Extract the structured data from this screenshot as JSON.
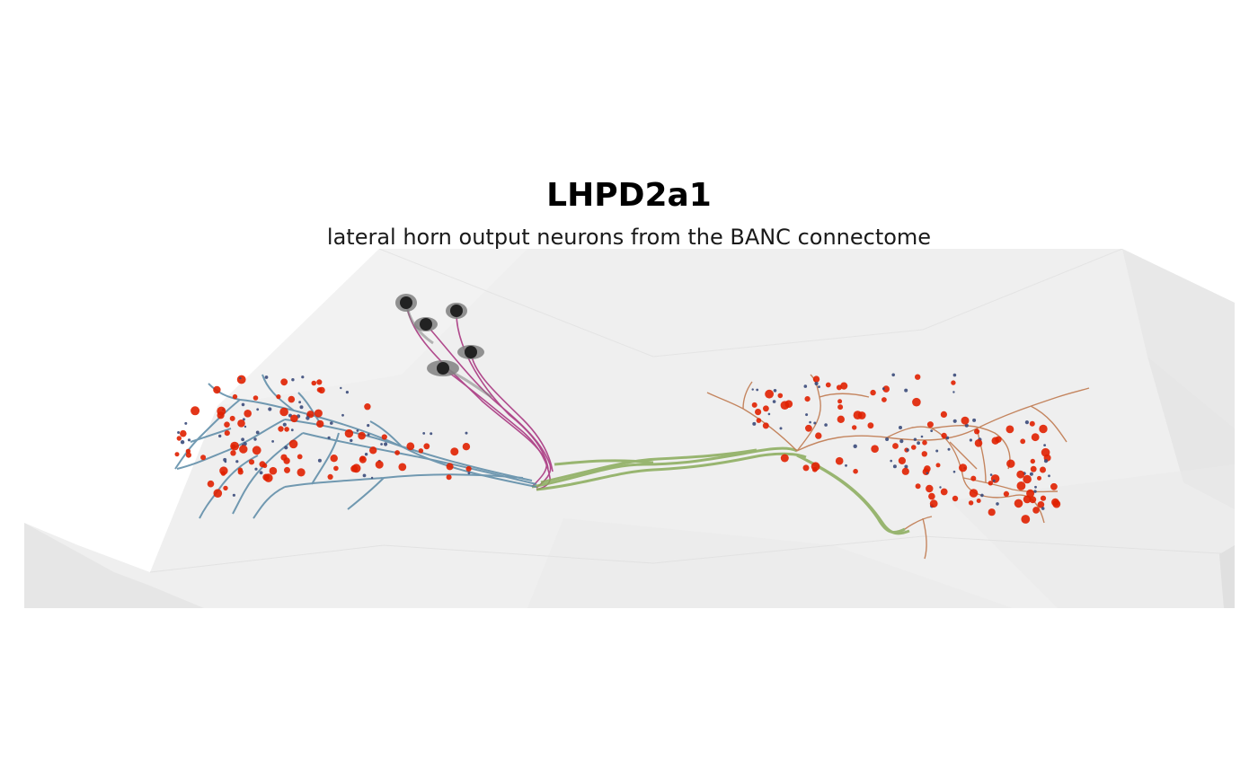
{
  "figure": {
    "title": "LHPD2a1",
    "subtitle": "lateral horn output neurons from the BANC connectome"
  },
  "colors": {
    "background": "#ffffff",
    "brain_mesh": "#ececec",
    "dendrite_arbor": "#5a8aa6",
    "primary_neurite": "#b04a8c",
    "axon_tract": "#8aac5a",
    "axon_arbor": "#c07a50",
    "presynapse": "#e02000",
    "postsynapse": "#3a4a7a",
    "soma": "#222222"
  },
  "icons": [
    "soma-marker",
    "synapse-marker"
  ]
}
